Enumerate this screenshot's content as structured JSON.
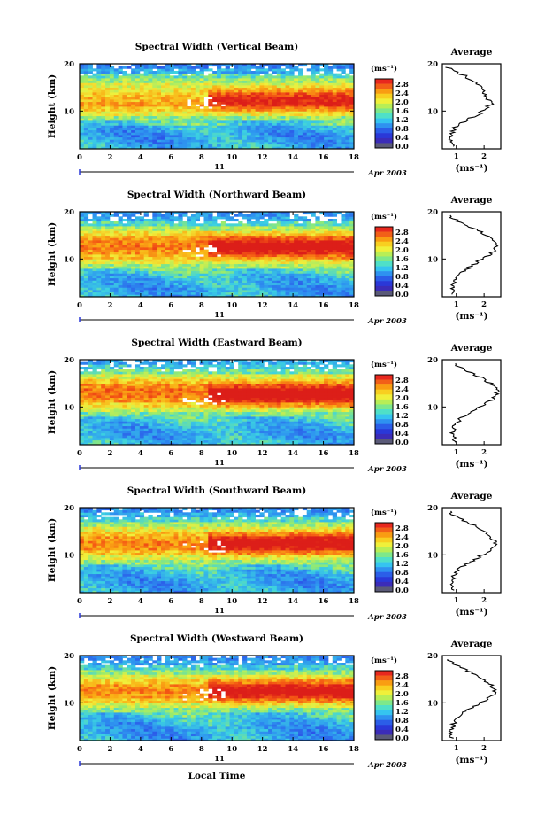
{
  "figure": {
    "shared": {
      "time_ticks": [
        "0",
        "2",
        "4",
        "6",
        "8",
        "10",
        "12",
        "14",
        "16",
        "18"
      ],
      "height_ticks": [
        "20",
        "10"
      ],
      "height_label": "Height (km)",
      "day_label": "11",
      "date_label": "Apr 2003",
      "unit_label": "(ms⁻¹)",
      "colorbar_ticks": [
        "2.8",
        "2.4",
        "2.0",
        "1.6",
        "1.2",
        "0.8",
        "0.4",
        "0.0"
      ],
      "average_title": "Average",
      "average_xlabel": "(ms⁻¹)",
      "xlabel": "Local Time"
    },
    "colorbar_colors": [
      "#e8281e",
      "#f25f18",
      "#f99d12",
      "#f8cf20",
      "#f0f03a",
      "#b8ee56",
      "#7ee88a",
      "#4fe0c8",
      "#35c4f0",
      "#2e92f0",
      "#2b5ee8",
      "#2a38d8",
      "#3b2cb8",
      "#5a5a78"
    ]
  },
  "chart_data": [
    {
      "type": "heatmap",
      "title": "Spectral Width (Vertical Beam)",
      "xlabel": "",
      "ylabel": "Height (km)",
      "xlim": [
        0,
        18
      ],
      "ylim": [
        2,
        20
      ],
      "clim": [
        0.0,
        3.0
      ],
      "units": "ms-1",
      "profile": {
        "title": "Average",
        "xlabel": "(ms-1)",
        "x_ticks": [
          "1",
          "2"
        ],
        "height": [
          2.5,
          3.5,
          4.5,
          5.5,
          6.5,
          7.5,
          8.5,
          9.5,
          10.5,
          11.5,
          12.5,
          13.5,
          14.5,
          15.5,
          16.5,
          17.5,
          18.5,
          19.5
        ],
        "values": [
          0.9,
          0.85,
          0.8,
          0.85,
          0.95,
          1.2,
          1.5,
          1.85,
          2.05,
          2.25,
          2.15,
          2.05,
          1.9,
          1.8,
          1.55,
          1.3,
          0.9,
          0.6
        ]
      }
    },
    {
      "type": "heatmap",
      "title": "Spectral Width (Northward Beam)",
      "xlabel": "",
      "ylabel": "Height (km)",
      "xlim": [
        0,
        18
      ],
      "ylim": [
        2,
        20
      ],
      "clim": [
        0.0,
        3.0
      ],
      "units": "ms-1",
      "profile": {
        "title": "Average",
        "xlabel": "(ms-1)",
        "x_ticks": [
          "1",
          "2"
        ],
        "height": [
          2.5,
          3.5,
          4.5,
          5.5,
          6.5,
          7.5,
          8.5,
          9.5,
          10.5,
          11.5,
          12.5,
          13.5,
          14.5,
          15.5,
          16.5,
          17.5,
          18.5,
          19.5
        ],
        "values": [
          0.9,
          0.85,
          0.9,
          0.95,
          1.05,
          1.25,
          1.55,
          1.8,
          2.1,
          2.3,
          2.45,
          2.4,
          2.25,
          1.95,
          1.6,
          1.25,
          0.9,
          0.75
        ]
      }
    },
    {
      "type": "heatmap",
      "title": "Spectral Width (Eastward Beam)",
      "xlabel": "",
      "ylabel": "Height (km)",
      "xlim": [
        0,
        18
      ],
      "ylim": [
        2,
        20
      ],
      "clim": [
        0.0,
        3.0
      ],
      "units": "ms-1",
      "profile": {
        "title": "Average",
        "xlabel": "(ms-1)",
        "x_ticks": [
          "1",
          "2"
        ],
        "height": [
          2.5,
          3.5,
          4.5,
          5.5,
          6.5,
          7.5,
          8.5,
          9.5,
          10.5,
          11.5,
          12.5,
          13.5,
          14.5,
          15.5,
          16.5,
          17.5,
          18.5,
          19.5
        ],
        "values": [
          1.0,
          0.9,
          0.85,
          0.9,
          1.0,
          1.15,
          1.4,
          1.7,
          2.0,
          2.3,
          2.45,
          2.5,
          2.35,
          2.1,
          1.8,
          1.4,
          1.1,
          0.85
        ]
      }
    },
    {
      "type": "heatmap",
      "title": "Spectral Width (Southward Beam)",
      "xlabel": "",
      "ylabel": "Height (km)",
      "xlim": [
        0,
        18
      ],
      "ylim": [
        2,
        20
      ],
      "clim": [
        0.0,
        3.0
      ],
      "units": "ms-1",
      "profile": {
        "title": "Average",
        "xlabel": "(ms-1)",
        "x_ticks": [
          "1",
          "2"
        ],
        "height": [
          2.5,
          3.5,
          4.5,
          5.5,
          6.5,
          7.5,
          8.5,
          9.5,
          10.5,
          11.5,
          12.5,
          13.5,
          14.5,
          15.5,
          16.5,
          17.5,
          18.5,
          19.5
        ],
        "values": [
          0.9,
          0.85,
          0.85,
          0.9,
          1.0,
          1.2,
          1.5,
          1.8,
          2.1,
          2.35,
          2.4,
          2.3,
          2.1,
          1.85,
          1.55,
          1.2,
          0.9,
          0.7
        ]
      }
    },
    {
      "type": "heatmap",
      "title": "Spectral Width (Westward Beam)",
      "xlabel": "Local Time",
      "ylabel": "Height (km)",
      "xlim": [
        0,
        18
      ],
      "ylim": [
        2,
        20
      ],
      "clim": [
        0.0,
        3.0
      ],
      "units": "ms-1",
      "profile": {
        "title": "Average",
        "xlabel": "(ms-1)",
        "x_ticks": [
          "1",
          "2"
        ],
        "height": [
          2.5,
          3.5,
          4.5,
          5.5,
          6.5,
          7.5,
          8.5,
          9.5,
          10.5,
          11.5,
          12.5,
          13.5,
          14.5,
          15.5,
          16.5,
          17.5,
          18.5,
          19.5
        ],
        "values": [
          0.85,
          0.8,
          0.85,
          0.9,
          1.0,
          1.15,
          1.45,
          1.75,
          2.05,
          2.3,
          2.4,
          2.3,
          2.05,
          1.8,
          1.5,
          1.15,
          0.85,
          0.7
        ]
      }
    }
  ]
}
